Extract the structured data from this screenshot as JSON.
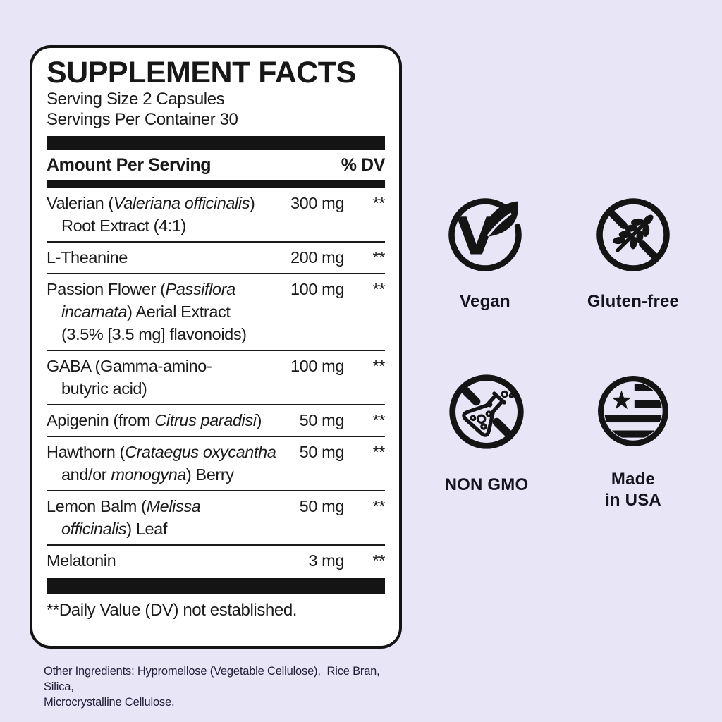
{
  "label": {
    "title": "SUPPLEMENT FACTS",
    "serving_size": "Serving Size 2 Capsules",
    "servings_per_container": "Servings Per Container 30",
    "columns": {
      "amount": "Amount Per Serving",
      "dv": "% DV"
    },
    "rows": [
      {
        "lines": [
          [
            {
              "t": "Valerian ("
            },
            {
              "t": "Valeriana officinalis",
              "i": true
            },
            {
              "t": ")"
            }
          ],
          [
            {
              "t": "Root Extract (4:1)"
            }
          ]
        ],
        "amount": "300 mg",
        "dv": "**"
      },
      {
        "lines": [
          [
            {
              "t": "L-Theanine"
            }
          ]
        ],
        "amount": "200 mg",
        "dv": "**"
      },
      {
        "lines": [
          [
            {
              "t": "Passion Flower ("
            },
            {
              "t": "Passiflora",
              "i": true
            }
          ],
          [
            {
              "t": "incarnata",
              "i": true
            },
            {
              "t": ") Aerial Extract"
            }
          ],
          [
            {
              "t": "(3.5% [3.5 mg] flavonoids)"
            }
          ]
        ],
        "amount": "100 mg",
        "dv": "**"
      },
      {
        "lines": [
          [
            {
              "t": "GABA (Gamma-amino-"
            }
          ],
          [
            {
              "t": "butyric acid)"
            }
          ]
        ],
        "amount": "100 mg",
        "dv": "**"
      },
      {
        "lines": [
          [
            {
              "t": "Apigenin (from "
            },
            {
              "t": "Citrus paradisi",
              "i": true
            },
            {
              "t": ")"
            }
          ]
        ],
        "amount": "50 mg",
        "dv": "**"
      },
      {
        "lines": [
          [
            {
              "t": "Hawthorn ("
            },
            {
              "t": "Crataegus oxycantha",
              "i": true
            }
          ],
          [
            {
              "t": "and/or "
            },
            {
              "t": "monogyna",
              "i": true
            },
            {
              "t": ") Berry"
            }
          ]
        ],
        "amount": "50 mg",
        "dv": "**"
      },
      {
        "lines": [
          [
            {
              "t": "Lemon Balm ("
            },
            {
              "t": "Melissa",
              "i": true
            }
          ],
          [
            {
              "t": "officinalis",
              "i": true
            },
            {
              "t": ") Leaf"
            }
          ]
        ],
        "amount": "50 mg",
        "dv": "**"
      },
      {
        "lines": [
          [
            {
              "t": "Melatonin"
            }
          ]
        ],
        "amount": "3 mg",
        "dv": "**"
      }
    ],
    "footnote": "**Daily Value (DV) not established."
  },
  "other_ingredients": "Other Ingredients: Hypromellose (Vegetable Cellulose),  Rice Bran, Silica,\nMicrocrystalline Cellulose.",
  "badges": [
    {
      "id": "vegan",
      "label": "Vegan",
      "icon": "vegan-icon"
    },
    {
      "id": "gluten-free",
      "label": "Gluten-free",
      "icon": "gluten-free-icon"
    },
    {
      "id": "non-gmo",
      "label": "NON GMO",
      "icon": "non-gmo-icon"
    },
    {
      "id": "made-in-usa",
      "label": "Made\nin USA",
      "icon": "made-in-usa-icon"
    }
  ],
  "colors": {
    "background": "#e8e5f6",
    "panel_background": "#ffffff",
    "ink": "#141414"
  }
}
